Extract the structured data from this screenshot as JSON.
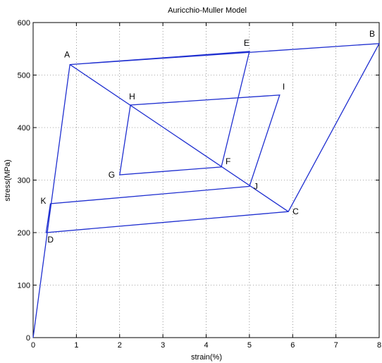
{
  "chart_data": {
    "type": "line",
    "title": "Auricchio-Muller Model",
    "xlabel": "strain(%)",
    "ylabel": "stress(MPa)",
    "xlim": [
      0,
      8
    ],
    "ylim": [
      0,
      600
    ],
    "xticks": [
      "0",
      "1",
      "2",
      "3",
      "4",
      "5",
      "6",
      "7",
      "8"
    ],
    "yticks": [
      "0",
      "100",
      "200",
      "300",
      "400",
      "500",
      "600"
    ],
    "grid": true,
    "line_color": "#1f2fd0",
    "series": [
      {
        "x": [
          0,
          0.85,
          5.0,
          4.35,
          2.0,
          2.25,
          5.7,
          5.0,
          0.4,
          0.3,
          5.9,
          8.0,
          0.85
        ],
        "y": [
          0,
          520,
          545,
          325,
          310,
          443,
          462,
          288,
          255,
          200,
          240,
          560,
          520
        ]
      },
      {
        "x": [
          0.85,
          5.9
        ],
        "y": [
          520,
          240
        ]
      }
    ],
    "point_labels": [
      {
        "text": "A",
        "x": 0.85,
        "y": 520
      },
      {
        "text": "B",
        "x": 8.0,
        "y": 560
      },
      {
        "text": "C",
        "x": 5.9,
        "y": 240
      },
      {
        "text": "D",
        "x": 0.3,
        "y": 200
      },
      {
        "text": "E",
        "x": 5.0,
        "y": 545
      },
      {
        "text": "F",
        "x": 4.35,
        "y": 325
      },
      {
        "text": "G",
        "x": 2.0,
        "y": 310
      },
      {
        "text": "H",
        "x": 2.25,
        "y": 443
      },
      {
        "text": "I",
        "x": 5.7,
        "y": 462
      },
      {
        "text": "J",
        "x": 5.0,
        "y": 288
      },
      {
        "text": "K",
        "x": 0.4,
        "y": 255
      }
    ]
  }
}
